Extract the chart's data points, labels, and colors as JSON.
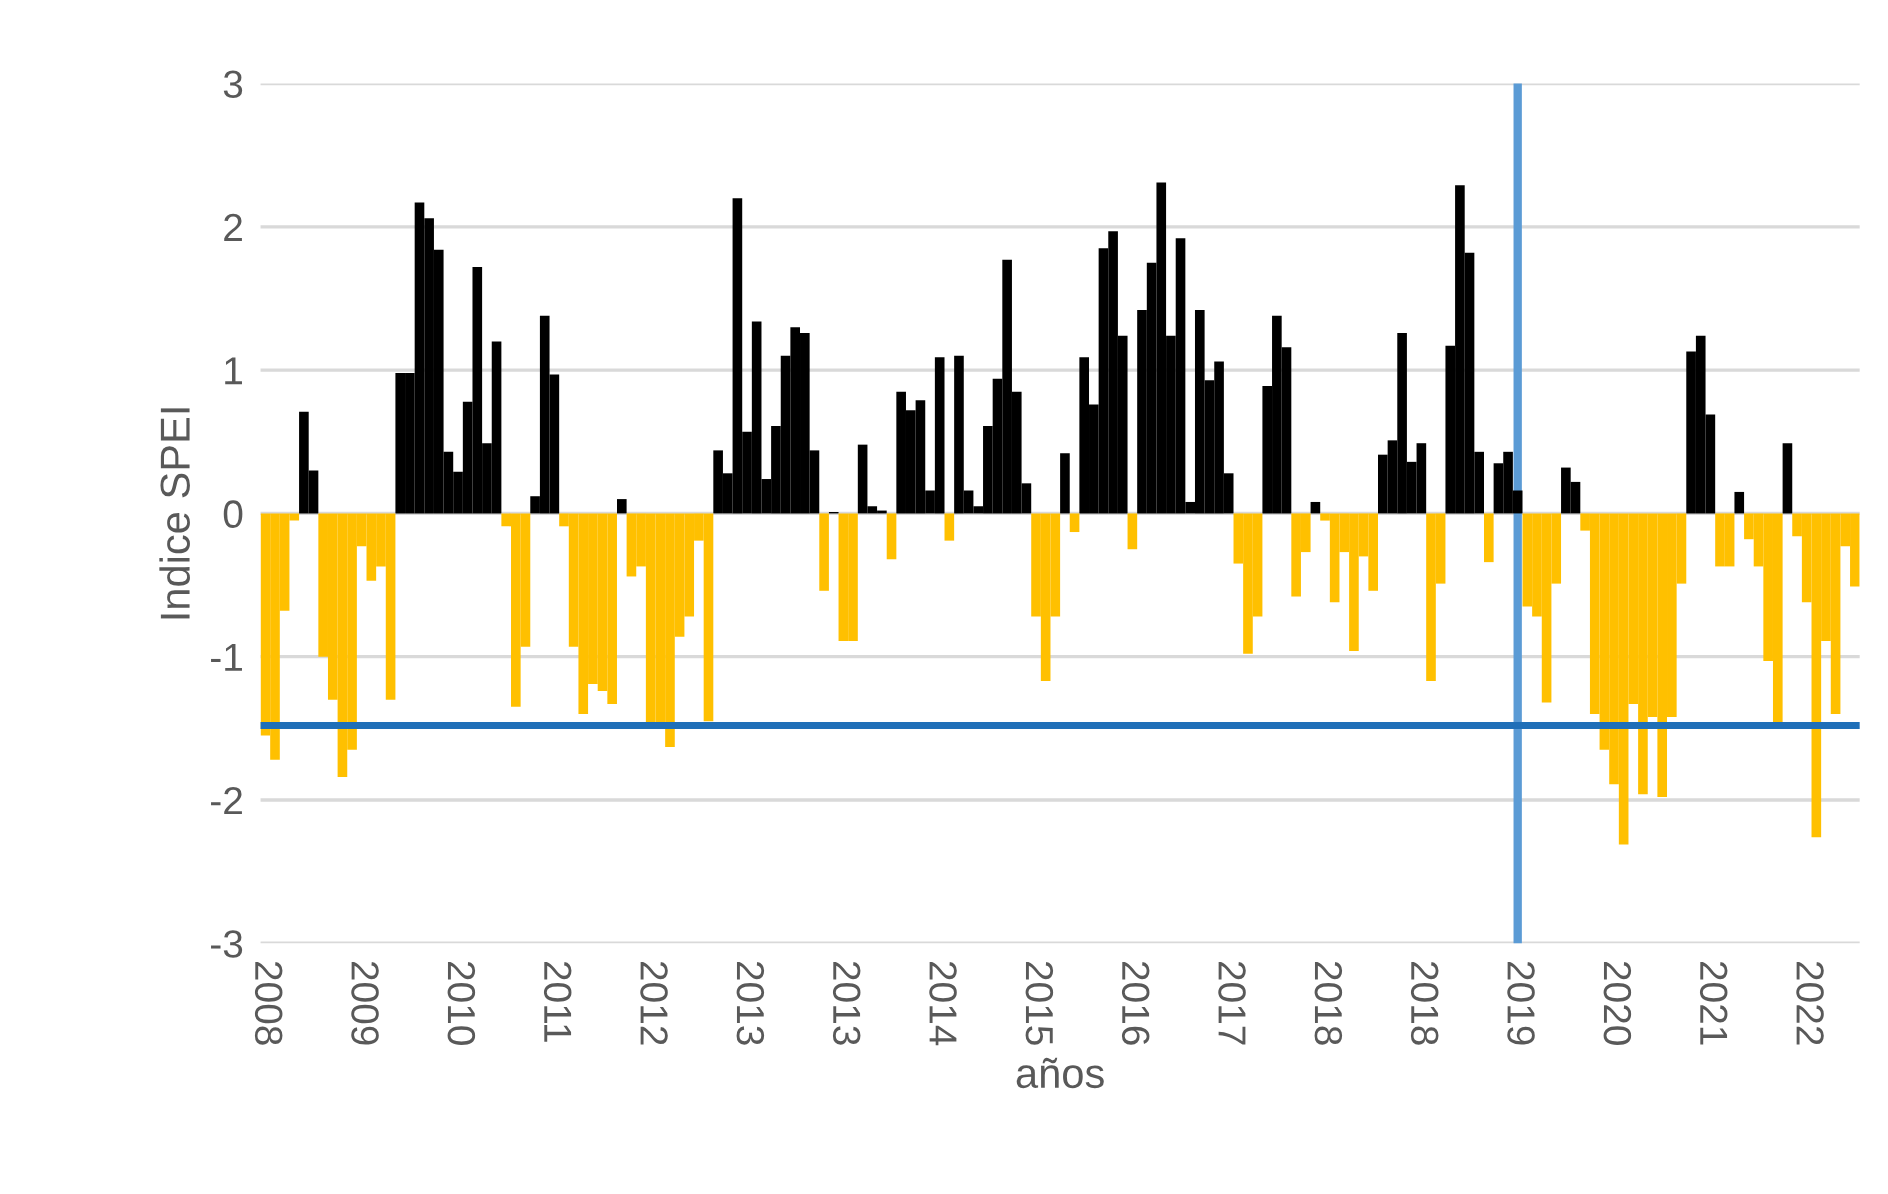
{
  "chart_data": {
    "type": "bar",
    "xlabel": "años",
    "ylabel": "Indice SPEI",
    "categories": [
      "2008",
      null,
      null,
      null,
      null,
      null,
      null,
      null,
      null,
      null,
      "2009",
      null,
      null,
      null,
      null,
      null,
      null,
      null,
      null,
      null,
      "2010",
      null,
      null,
      null,
      null,
      null,
      null,
      null,
      null,
      null,
      "2011",
      null,
      null,
      null,
      null,
      null,
      null,
      null,
      null,
      null,
      "2012",
      null,
      null,
      null,
      null,
      null,
      null,
      null,
      null,
      null,
      "2013",
      null,
      null,
      null,
      null,
      null,
      null,
      null,
      null,
      null,
      "2013",
      null,
      null,
      null,
      null,
      null,
      null,
      null,
      null,
      null,
      "2014",
      null,
      null,
      null,
      null,
      null,
      null,
      null,
      null,
      null,
      "2015",
      null,
      null,
      null,
      null,
      null,
      null,
      null,
      null,
      null,
      "2016",
      null,
      null,
      null,
      null,
      null,
      null,
      null,
      null,
      null,
      "2017",
      null,
      null,
      null,
      null,
      null,
      null,
      null,
      null,
      null,
      "2018",
      null,
      null,
      null,
      null,
      null,
      null,
      null,
      null,
      null,
      "2018",
      null,
      null,
      null,
      null,
      null,
      null,
      null,
      null,
      null,
      "2019",
      null,
      null,
      null,
      null,
      null,
      null,
      null,
      null,
      null,
      "2020",
      null,
      null,
      null,
      null,
      null,
      null,
      null,
      null,
      null,
      "2021",
      null,
      null,
      null,
      null,
      null,
      null,
      null,
      null,
      null,
      "2022",
      null,
      null,
      null,
      null,
      null
    ],
    "series": [
      {
        "color": "#000000",
        "values": [
          null,
          null,
          null,
          null,
          0.71,
          0.3,
          null,
          null,
          null,
          null,
          null,
          null,
          null,
          null,
          0.98,
          0.98,
          2.17,
          2.06,
          1.84,
          0.43,
          0.29,
          0.78,
          1.72,
          0.49,
          1.2,
          null,
          null,
          null,
          0.12,
          1.38,
          0.97,
          null,
          null,
          null,
          null,
          null,
          null,
          0.1,
          null,
          null,
          null,
          null,
          null,
          null,
          null,
          null,
          null,
          0.44,
          0.28,
          2.2,
          0.57,
          1.34,
          0.24,
          0.61,
          1.1,
          1.3,
          1.26,
          0.44,
          null,
          0.01,
          null,
          null,
          0.48,
          0.05,
          0.02,
          null,
          0.85,
          0.72,
          0.79,
          0.16,
          1.09,
          null,
          1.1,
          0.16,
          0.05,
          0.61,
          0.94,
          1.77,
          0.85,
          0.21,
          null,
          null,
          null,
          0.42,
          null,
          1.09,
          0.76,
          1.85,
          1.97,
          1.24,
          null,
          1.42,
          1.75,
          2.31,
          1.24,
          1.92,
          0.08,
          1.42,
          0.93,
          1.06,
          0.28,
          null,
          null,
          null,
          0.89,
          1.38,
          1.16,
          null,
          null,
          0.08,
          null,
          null,
          null,
          null,
          null,
          null,
          0.41,
          0.51,
          1.26,
          0.36,
          0.49,
          null,
          null,
          1.17,
          2.29,
          1.82,
          0.43,
          null,
          0.35,
          0.43,
          0.16,
          null,
          null,
          null,
          null,
          0.32,
          0.22,
          null,
          null,
          null,
          null,
          null,
          null,
          null,
          null,
          null,
          null,
          null,
          1.13,
          1.24,
          0.69,
          null,
          null,
          0.15,
          null,
          null,
          null,
          null,
          0.49,
          null,
          null,
          null,
          null,
          null,
          null,
          null
        ]
      },
      {
        "color": "#ffc000",
        "values": [
          -1.55,
          -1.72,
          -0.68,
          -0.05,
          null,
          null,
          -1.0,
          -1.3,
          -1.84,
          -1.65,
          -0.23,
          -0.47,
          -0.37,
          -1.3,
          null,
          null,
          null,
          null,
          null,
          null,
          null,
          null,
          null,
          null,
          null,
          -0.09,
          -1.35,
          -0.93,
          null,
          null,
          null,
          -0.09,
          -0.93,
          -1.4,
          -1.19,
          -1.24,
          -1.33,
          null,
          -0.44,
          -0.37,
          -1.49,
          -1.49,
          -1.63,
          -0.86,
          -0.72,
          -0.19,
          -1.45,
          null,
          null,
          null,
          null,
          null,
          null,
          null,
          null,
          null,
          null,
          null,
          -0.54,
          null,
          -0.89,
          -0.89,
          null,
          null,
          null,
          -0.32,
          null,
          null,
          null,
          null,
          null,
          -0.19,
          null,
          null,
          null,
          null,
          null,
          null,
          null,
          null,
          -0.72,
          -1.17,
          -0.72,
          null,
          -0.13,
          null,
          null,
          null,
          null,
          null,
          -0.25,
          null,
          null,
          null,
          null,
          null,
          null,
          null,
          null,
          null,
          null,
          -0.35,
          -0.98,
          -0.72,
          null,
          null,
          null,
          -0.58,
          -0.27,
          null,
          -0.05,
          -0.62,
          -0.27,
          -0.96,
          -0.3,
          -0.54,
          null,
          null,
          null,
          null,
          null,
          -1.17,
          -0.49,
          null,
          null,
          null,
          null,
          -0.34,
          null,
          null,
          null,
          -0.65,
          -0.72,
          -1.32,
          -0.49,
          null,
          null,
          -0.12,
          -1.4,
          -1.65,
          -1.89,
          -2.31,
          -1.33,
          -1.96,
          -1.42,
          -1.98,
          -1.42,
          -0.49,
          null,
          null,
          null,
          -0.37,
          -0.37,
          null,
          -0.18,
          -0.37,
          -1.03,
          -1.47,
          null,
          -0.16,
          -0.62,
          -2.26,
          -0.89,
          -1.4,
          -0.23,
          -0.51
        ]
      }
    ],
    "ylim": [
      -3,
      3
    ],
    "yticks": [
      -3,
      -2,
      -1,
      0,
      1,
      2,
      3
    ],
    "grid": "y",
    "legend": false,
    "ref_lines": [
      {
        "axis": "y",
        "value": -1.48,
        "color": "#1f6fb8"
      },
      {
        "axis": "x",
        "value": "2019",
        "color": "#5b9bd5"
      }
    ]
  }
}
